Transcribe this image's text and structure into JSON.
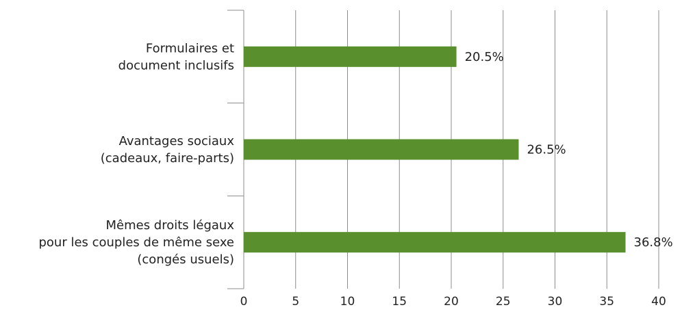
{
  "chart_data": {
    "type": "bar",
    "orientation": "horizontal",
    "categories": [
      "Formulaires et document inclusifs",
      "Avantages sociaux (cadeaux, faire-parts)",
      "Mêmes droits légaux pour les couples de même sexe (congés usuels)"
    ],
    "category_lines": [
      [
        "Formulaires et",
        "document inclusifs"
      ],
      [
        "Avantages sociaux",
        "(cadeaux, faire-parts)"
      ],
      [
        "Mêmes droits légaux",
        "pour les couples de même sexe",
        "(congés usuels)"
      ]
    ],
    "values": [
      20.5,
      26.5,
      36.8
    ],
    "value_labels": [
      "20.5%",
      "26.5%",
      "36.8%"
    ],
    "xlim": [
      0,
      40
    ],
    "xticks": [
      0,
      5,
      10,
      15,
      20,
      25,
      30,
      35,
      40
    ],
    "xtick_labels": [
      "0",
      "5",
      "10",
      "15",
      "20",
      "25",
      "30",
      "35",
      "40"
    ],
    "grid": "vertical",
    "bar_color": "#5a8f2e",
    "title": "",
    "xlabel": "",
    "ylabel": ""
  }
}
